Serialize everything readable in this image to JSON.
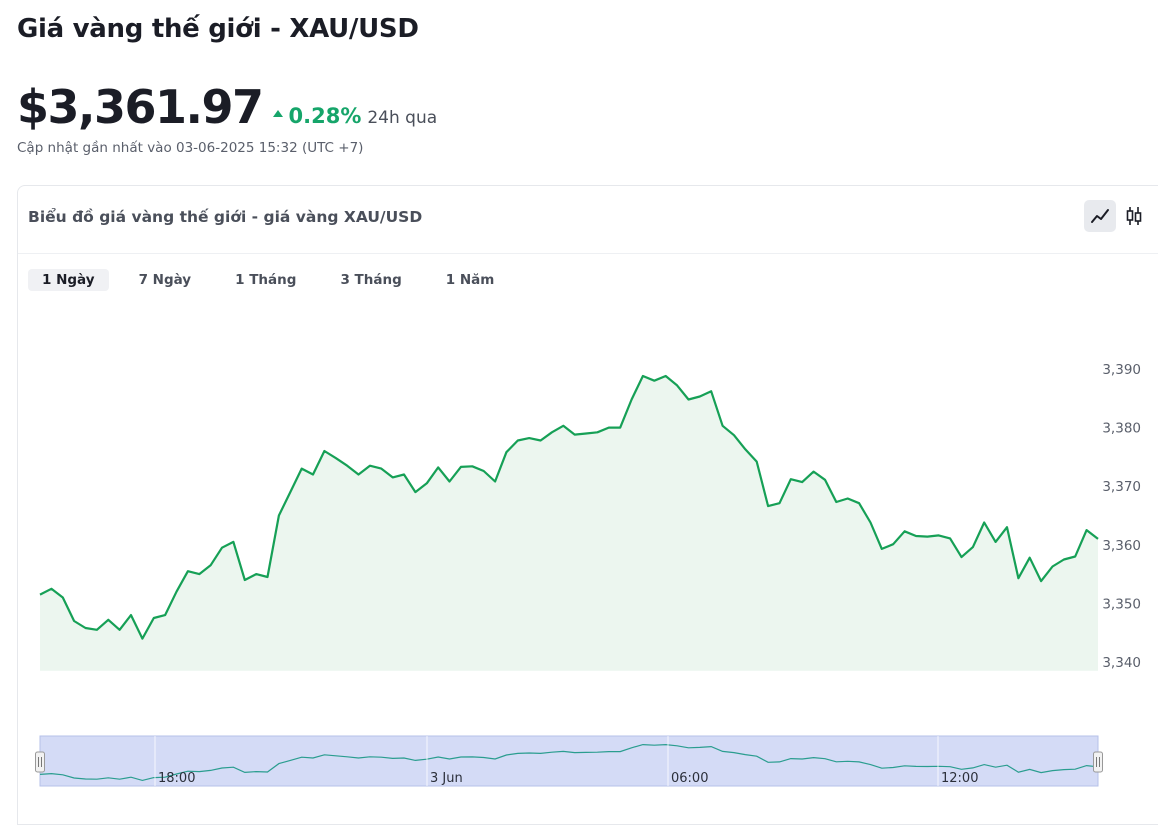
{
  "page": {
    "title": "Giá vàng thế giới - XAU/USD",
    "price": "$3,361.97",
    "change": "0.28%",
    "change_period": "24h qua",
    "updated": "Cập nhật gần nhất vào 03-06-2025 15:32 (UTC +7)"
  },
  "card": {
    "title": "Biểu đồ giá vàng thế giới - giá vàng XAU/USD",
    "chart_types": [
      {
        "name": "line-chart-icon",
        "active": true
      },
      {
        "name": "candlestick-icon",
        "active": false
      }
    ],
    "ranges": [
      {
        "label": "1 Ngày",
        "active": true
      },
      {
        "label": "7 Ngày",
        "active": false
      },
      {
        "label": "1 Tháng",
        "active": false
      },
      {
        "label": "3 Tháng",
        "active": false
      },
      {
        "label": "1 Năm",
        "active": false
      }
    ]
  },
  "colors": {
    "up": "#16a56a",
    "line": "#16a056",
    "area": "#ecf6ef",
    "navigator_fill": "#d4dbf6",
    "navigator_line": "#2a9d8f"
  },
  "chart_data": {
    "type": "area",
    "title": "",
    "xlabel": "",
    "ylabel": "",
    "ylim": [
      3338.5,
      3392
    ],
    "yticks": [
      3340,
      3350,
      3360,
      3370,
      3380,
      3390
    ],
    "ytick_labels": [
      "3,340",
      "3,350",
      "3,360",
      "3,370",
      "3,380",
      "3,390"
    ],
    "series": [
      {
        "values": [
          3351.5,
          3352.5,
          3351,
          3347,
          3345.8,
          3345.5,
          3347.2,
          3345.5,
          3348,
          3344,
          3347.5,
          3348,
          3352,
          3355.5,
          3355,
          3356.5,
          3359.5,
          3360.5,
          3354,
          3355,
          3354.5,
          3365,
          3369,
          3373,
          3372,
          3376,
          3374.8,
          3373.5,
          3372,
          3373.5,
          3373,
          3371.5,
          3372,
          3369,
          3370.5,
          3373.2,
          3370.8,
          3373.3,
          3373.4,
          3372.6,
          3370.8,
          3375.8,
          3377.8,
          3378.2,
          3377.8,
          3379.2,
          3380.3,
          3378.8,
          3379,
          3379.2,
          3380,
          3380,
          3384.8,
          3388.8,
          3388,
          3388.8,
          3387.2,
          3384.8,
          3385.3,
          3386.2,
          3380.3,
          3378.7,
          3376.3,
          3374.2,
          3366.6,
          3367.1,
          3371.2,
          3370.7,
          3372.5,
          3371.1,
          3367.3,
          3367.9,
          3367.1,
          3363.8,
          3359.3,
          3360.1,
          3362.3,
          3361.5,
          3361.4,
          3361.6,
          3361.1,
          3357.9,
          3359.6,
          3363.8,
          3360.5,
          3363,
          3354.3,
          3357.8,
          3353.8,
          3356.3,
          3357.5,
          3358,
          3362.5,
          3361
        ]
      }
    ],
    "navigator": {
      "x_labels": [
        "18:00",
        "3 Jun",
        "06:00",
        "12:00"
      ]
    }
  }
}
